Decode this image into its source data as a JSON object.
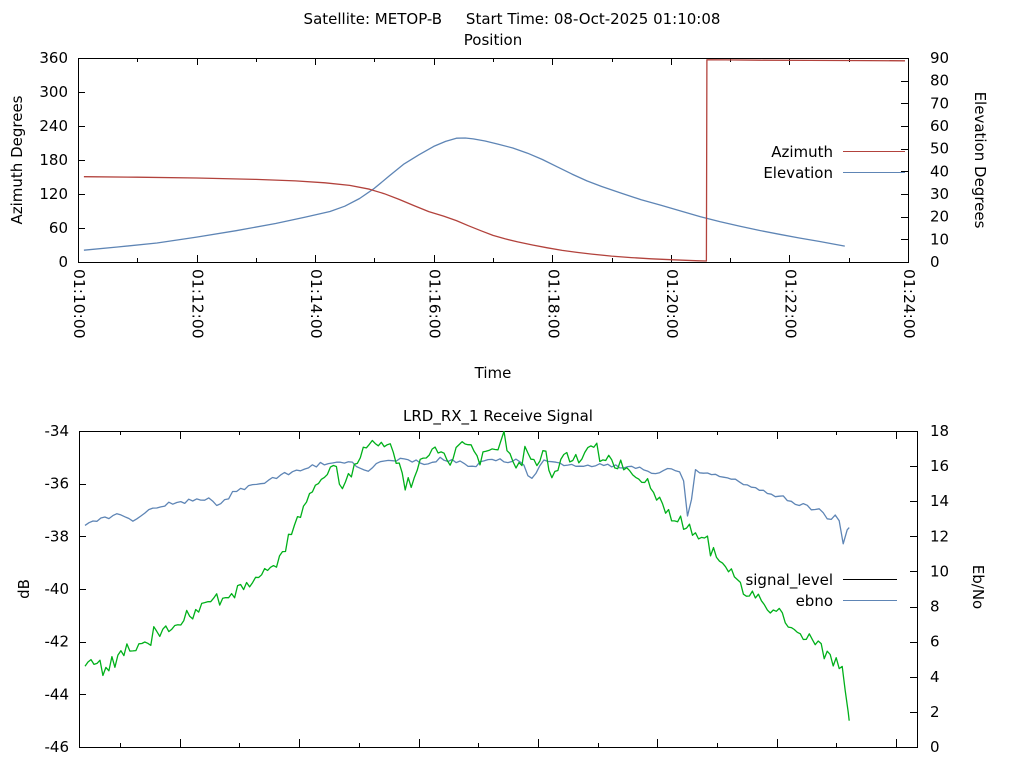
{
  "header": {
    "title": "Satellite: METOP-B     Start Time: 08-Oct-2025 01:10:08"
  },
  "colors": {
    "azimuth": "#b2423c",
    "elevation": "#5e85b5",
    "signal_plot": "#00b01a",
    "signal_legend": "#000000",
    "ebno": "#5e85b5",
    "axis": "#000000"
  },
  "chart_data": [
    {
      "type": "line",
      "title": "Position",
      "xlabel": "Time",
      "ylabel_left": "Azimuth Degrees",
      "ylabel_right": "Elevation Degrees",
      "x_range_seconds": [
        0,
        840
      ],
      "x_ticks": {
        "values": [
          0,
          120,
          240,
          360,
          480,
          600,
          720,
          840
        ],
        "labels": [
          "01:10:00",
          "01:12:00",
          "01:14:00",
          "01:16:00",
          "01:18:00",
          "01:20:00",
          "01:22:00",
          "01:24:00"
        ]
      },
      "x_minor_ticks": [
        60,
        180,
        300,
        420,
        540,
        660,
        780
      ],
      "y_left": {
        "min": 0,
        "max": 360,
        "ticks": [
          0,
          60,
          120,
          180,
          240,
          300,
          360
        ]
      },
      "y_right": {
        "min": 0,
        "max": 90,
        "ticks": [
          0,
          10,
          20,
          30,
          40,
          50,
          60,
          70,
          80,
          90
        ]
      },
      "legend": [
        {
          "label": "Azimuth",
          "color": "azimuth"
        },
        {
          "label": "Elevation",
          "color": "elevation"
        }
      ],
      "series": [
        {
          "name": "Elevation",
          "axis": "right",
          "color": "elevation",
          "points": [
            [
              6,
              5.2
            ],
            [
              40,
              6.6
            ],
            [
              80,
              8.4
            ],
            [
              120,
              11
            ],
            [
              160,
              13.8
            ],
            [
              200,
              17
            ],
            [
              230,
              19.8
            ],
            [
              255,
              22.3
            ],
            [
              270,
              24.6
            ],
            [
              285,
              28
            ],
            [
              300,
              32.5
            ],
            [
              315,
              38
            ],
            [
              330,
              43.3
            ],
            [
              345,
              47.3
            ],
            [
              360,
              51
            ],
            [
              372,
              53.2
            ],
            [
              383,
              54.6
            ],
            [
              392,
              54.7
            ],
            [
              400,
              54.3
            ],
            [
              412,
              53.4
            ],
            [
              425,
              52
            ],
            [
              440,
              50.3
            ],
            [
              455,
              48
            ],
            [
              470,
              45.2
            ],
            [
              485,
              42
            ],
            [
              500,
              38.8
            ],
            [
              515,
              35.8
            ],
            [
              530,
              33.3
            ],
            [
              550,
              30.3
            ],
            [
              570,
              27.5
            ],
            [
              590,
              25
            ],
            [
              610,
              22.5
            ],
            [
              630,
              20
            ],
            [
              650,
              17.8
            ],
            [
              670,
              15.8
            ],
            [
              690,
              13.9
            ],
            [
              710,
              12.2
            ],
            [
              730,
              10.6
            ],
            [
              750,
              9.1
            ],
            [
              765,
              7.9
            ],
            [
              776,
              7
            ]
          ]
        },
        {
          "name": "Azimuth",
          "axis": "left",
          "color": "azimuth",
          "points": [
            [
              6,
              150.5
            ],
            [
              60,
              149.6
            ],
            [
              120,
              148.2
            ],
            [
              180,
              145.8
            ],
            [
              220,
              143.2
            ],
            [
              250,
              139.8
            ],
            [
              275,
              135.2
            ],
            [
              295,
              128.5
            ],
            [
              310,
              120.5
            ],
            [
              325,
              110.5
            ],
            [
              340,
              99.5
            ],
            [
              355,
              89
            ],
            [
              370,
              81
            ],
            [
              383,
              73
            ],
            [
              395,
              64
            ],
            [
              408,
              55
            ],
            [
              420,
              47
            ],
            [
              432,
              41
            ],
            [
              445,
              35.5
            ],
            [
              460,
              30
            ],
            [
              475,
              25
            ],
            [
              490,
              20.5
            ],
            [
              505,
              17
            ],
            [
              520,
              14
            ],
            [
              540,
              10.5
            ],
            [
              560,
              7.8
            ],
            [
              580,
              5.6
            ],
            [
              600,
              4
            ],
            [
              615,
              3
            ],
            [
              628,
              2.2
            ],
            [
              636,
              1.7
            ],
            [
              636.5,
              356.9
            ],
            [
              655,
              356.6
            ],
            [
              690,
              356.2
            ],
            [
              740,
              355.8
            ],
            [
              800,
              355.4
            ],
            [
              837,
              355.1
            ]
          ]
        }
      ]
    },
    {
      "type": "line",
      "title": "LRD_RX_1 Receive Signal",
      "ylabel_left": "dB",
      "ylabel_right": "Eb/No",
      "x_range_seconds": [
        0,
        840
      ],
      "y_left": {
        "min": -46,
        "max": -34,
        "ticks": [
          -46,
          -44,
          -42,
          -40,
          -38,
          -36,
          -34
        ]
      },
      "y_right": {
        "min": 0,
        "max": 18,
        "ticks": [
          0,
          2,
          4,
          6,
          8,
          10,
          12,
          14,
          16,
          18
        ]
      },
      "legend": [
        {
          "label": "signal_level",
          "color": "signal_legend"
        },
        {
          "label": "ebno",
          "color": "ebno"
        }
      ],
      "series": [
        {
          "name": "ebno",
          "axis": "right",
          "color": "ebno",
          "noise": {
            "amp": 0.08,
            "step": 4,
            "seed": 99
          },
          "points": [
            [
              6,
              12.7
            ],
            [
              20,
              13
            ],
            [
              40,
              13.2
            ],
            [
              55,
              12.9
            ],
            [
              70,
              13.5
            ],
            [
              90,
              13.8
            ],
            [
              110,
              14
            ],
            [
              130,
              14.2
            ],
            [
              140,
              13.7
            ],
            [
              155,
              14.5
            ],
            [
              175,
              14.9
            ],
            [
              195,
              15.3
            ],
            [
              215,
              15.7
            ],
            [
              235,
              16
            ],
            [
              255,
              16.2
            ],
            [
              275,
              16.25
            ],
            [
              290,
              15.6
            ],
            [
              300,
              16.3
            ],
            [
              330,
              16.35
            ],
            [
              350,
              16.1
            ],
            [
              360,
              16.4
            ],
            [
              380,
              16.3
            ],
            [
              395,
              15.9
            ],
            [
              410,
              16.4
            ],
            [
              425,
              16.3
            ],
            [
              440,
              16.45
            ],
            [
              453,
              15.3
            ],
            [
              465,
              16.3
            ],
            [
              480,
              16.2
            ],
            [
              500,
              16
            ],
            [
              520,
              16.1
            ],
            [
              540,
              15.9
            ],
            [
              560,
              16
            ],
            [
              575,
              15.6
            ],
            [
              590,
              15.9
            ],
            [
              605,
              15.7
            ],
            [
              611,
              12.6
            ],
            [
              617,
              15.8
            ],
            [
              630,
              15.6
            ],
            [
              645,
              15.4
            ],
            [
              660,
              15.1
            ],
            [
              675,
              14.8
            ],
            [
              690,
              14.5
            ],
            [
              705,
              14.2
            ],
            [
              715,
              14
            ],
            [
              722,
              13.7
            ],
            [
              728,
              13.9
            ],
            [
              735,
              13.5
            ],
            [
              742,
              13.6
            ],
            [
              748,
              13.3
            ],
            [
              752,
              12.7
            ],
            [
              756,
              13.2
            ],
            [
              760,
              13
            ],
            [
              764,
              12.9
            ],
            [
              767,
              10.8
            ],
            [
              770,
              12.4
            ],
            [
              772,
              12.5
            ]
          ]
        },
        {
          "name": "signal_level",
          "axis": "left",
          "color": "signal_plot",
          "noise": {
            "amp": 0.2,
            "step": 3,
            "seed": 1234
          },
          "points": [
            [
              6,
              -42.9
            ],
            [
              16,
              -42.6
            ],
            [
              26,
              -43.2
            ],
            [
              41,
              -42.5
            ],
            [
              57,
              -42.2
            ],
            [
              72,
              -41.9
            ],
            [
              87,
              -41.5
            ],
            [
              102,
              -41.2
            ],
            [
              122,
              -40.7
            ],
            [
              138,
              -40.4
            ],
            [
              153,
              -40.1
            ],
            [
              173,
              -39.8
            ],
            [
              193,
              -39.2
            ],
            [
              208,
              -38.4
            ],
            [
              224,
              -36.9
            ],
            [
              234,
              -36.3
            ],
            [
              244,
              -35.9
            ],
            [
              254,
              -35.6
            ],
            [
              264,
              -35.9
            ],
            [
              276,
              -35.4
            ],
            [
              291,
              -34.6
            ],
            [
              310,
              -34.5
            ],
            [
              320,
              -35.2
            ],
            [
              328,
              -36.1
            ],
            [
              337,
              -35.7
            ],
            [
              347,
              -34.9
            ],
            [
              357,
              -34.4
            ],
            [
              365,
              -34.9
            ],
            [
              372,
              -35.3
            ],
            [
              380,
              -34.6
            ],
            [
              391,
              -34.4
            ],
            [
              399,
              -35.1
            ],
            [
              408,
              -34.8
            ],
            [
              418,
              -34.6
            ],
            [
              426,
              -34.4
            ],
            [
              434,
              -34.9
            ],
            [
              442,
              -35.2
            ],
            [
              450,
              -34.8
            ],
            [
              458,
              -35.3
            ],
            [
              467,
              -34.9
            ],
            [
              476,
              -35.7
            ],
            [
              484,
              -35
            ],
            [
              492,
              -34.8
            ],
            [
              501,
              -35.1
            ],
            [
              509,
              -34.6
            ],
            [
              517,
              -34.4
            ],
            [
              525,
              -35
            ],
            [
              534,
              -35.4
            ],
            [
              543,
              -35.2
            ],
            [
              553,
              -35.5
            ],
            [
              562,
              -35.9
            ],
            [
              571,
              -36.2
            ],
            [
              580,
              -36.6
            ],
            [
              589,
              -37
            ],
            [
              598,
              -37.3
            ],
            [
              608,
              -37.7
            ],
            [
              618,
              -38
            ],
            [
              628,
              -38.3
            ],
            [
              639,
              -38.8
            ],
            [
              649,
              -39.2
            ],
            [
              659,
              -39.6
            ],
            [
              669,
              -40
            ],
            [
              679,
              -40.3
            ],
            [
              687,
              -40.6
            ],
            [
              695,
              -40.9
            ],
            [
              701,
              -40.5
            ],
            [
              707,
              -41
            ],
            [
              714,
              -41.4
            ],
            [
              722,
              -41.7
            ],
            [
              730,
              -41.9
            ],
            [
              738,
              -42.1
            ],
            [
              746,
              -42.4
            ],
            [
              754,
              -42.6
            ],
            [
              760,
              -42.9
            ],
            [
              766,
              -43.3
            ],
            [
              770,
              -44.1
            ],
            [
              772,
              -45
            ]
          ]
        }
      ]
    }
  ]
}
